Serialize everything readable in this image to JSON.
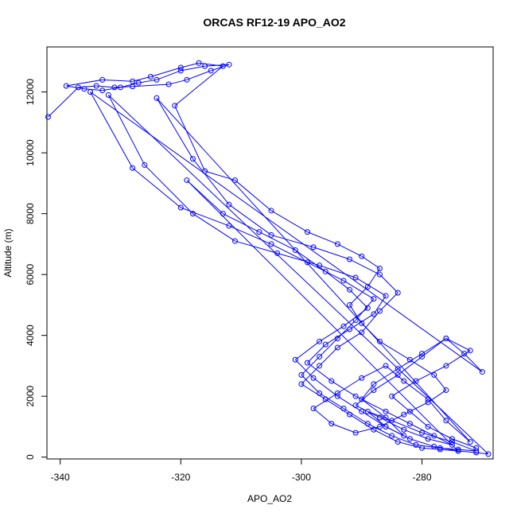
{
  "chart_data": {
    "type": "scatter",
    "mode": "lines+markers",
    "title": "ORCAS RF12-19 APO_AO2",
    "xlabel": "APO_AO2",
    "ylabel": "Altitude (m)",
    "xlim": [
      -342.2,
      -268.2
    ],
    "ylim": [
      -60,
      13480
    ],
    "x_ticks": [
      -340,
      -320,
      -300,
      -280
    ],
    "y_ticks": [
      0,
      2000,
      4000,
      6000,
      8000,
      10000,
      12000
    ],
    "grid": false,
    "legend": "none",
    "color": "#0000ff",
    "series": [
      {
        "x": [
          -342,
          -337,
          -334,
          -331,
          -328,
          -322,
          -319,
          -315,
          -312,
          -316,
          -320,
          -324,
          -327,
          -330,
          -333,
          -336,
          -339,
          -333,
          -328,
          -325,
          -320,
          -317,
          -313,
          -321,
          -316,
          -311,
          -305,
          -299,
          -294,
          -290,
          -287,
          -289,
          -292,
          -290,
          -287,
          -282,
          -278,
          -276,
          -279,
          -283,
          -287,
          -291,
          -295,
          -298,
          -294,
          -290,
          -286,
          -283,
          -279,
          -276,
          -272,
          -324,
          -318,
          -312,
          -305,
          -298,
          -292,
          -287,
          -284,
          -287,
          -290,
          -294,
          -297,
          -300,
          -296,
          -292,
          -288,
          -284,
          -280,
          -277,
          -274,
          -271,
          -269,
          -332,
          -326,
          -318,
          -311,
          -304,
          -297,
          -291,
          -286,
          -288,
          -292,
          -296,
          -299,
          -295,
          -291,
          -286,
          -282,
          -278,
          -275,
          -279,
          -283,
          -287,
          -291,
          -288,
          -284,
          -280,
          -276,
          -273,
          -270,
          -335,
          -328,
          -320,
          -312,
          -305,
          -299,
          -293,
          -288,
          -291,
          -294,
          -297,
          -300,
          -297,
          -293,
          -289,
          -285,
          -281,
          -277,
          -274,
          -271,
          -275,
          -280,
          -285,
          -289,
          -286,
          -282,
          -278,
          -274,
          -319,
          -313,
          -307,
          -301,
          -296,
          -292,
          -289,
          -293,
          -297,
          -301,
          -298,
          -294,
          -290,
          -286,
          -283,
          -286,
          -290,
          -288,
          -284,
          -280,
          -276,
          -272,
          -276,
          -281,
          -285,
          -282,
          -279,
          -275,
          -271
        ],
        "y": [
          11180,
          12150,
          12200,
          12150,
          12180,
          12250,
          12400,
          12700,
          12900,
          12850,
          12700,
          12400,
          12300,
          12150,
          12050,
          12100,
          12200,
          12400,
          12350,
          12500,
          12800,
          12950,
          12850,
          11550,
          9400,
          9100,
          8100,
          7400,
          7000,
          6600,
          6200,
          5600,
          5000,
          4400,
          3800,
          3200,
          2700,
          2200,
          1800,
          1400,
          1000,
          800,
          1100,
          1600,
          2100,
          2600,
          3000,
          2500,
          1900,
          1200,
          500,
          11800,
          9800,
          8300,
          7300,
          6900,
          6500,
          6000,
          5400,
          4800,
          4100,
          3600,
          3000,
          2400,
          1900,
          1400,
          900,
          500,
          300,
          250,
          200,
          150,
          100,
          11900,
          9600,
          8000,
          7100,
          6700,
          6300,
          5900,
          5300,
          4700,
          4200,
          3700,
          3100,
          2500,
          2000,
          1500,
          1100,
          700,
          400,
          600,
          900,
          1300,
          1700,
          2200,
          2700,
          3300,
          3900,
          3400,
          2800,
          12000,
          9500,
          8200,
          7600,
          7000,
          6400,
          5800,
          5200,
          4500,
          3900,
          3300,
          2700,
          2100,
          1600,
          1100,
          700,
          400,
          300,
          250,
          200,
          500,
          800,
          1200,
          1500,
          1000,
          600,
          350,
          200,
          9100,
          8000,
          7400,
          6800,
          6100,
          5500,
          4900,
          4300,
          3800,
          3200,
          2600,
          2000,
          1500,
          1000,
          700,
          1300,
          1900,
          2400,
          2900,
          3400,
          3900,
          3500,
          3000,
          2500,
          2000,
          1500,
          1000,
          600,
          300
        ]
      }
    ]
  }
}
